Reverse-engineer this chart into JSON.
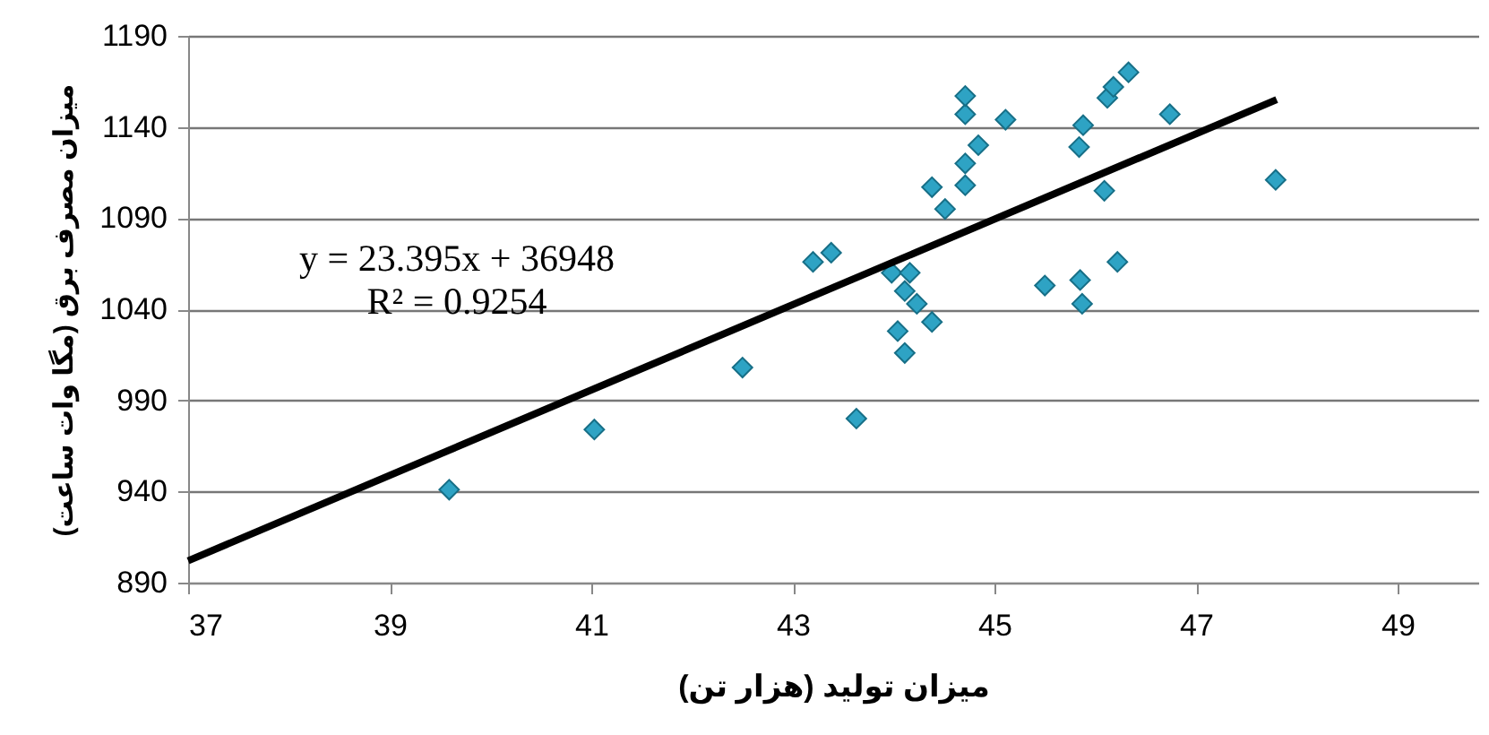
{
  "chart_data": {
    "type": "scatter",
    "xlabel": "میزان تولید (هزار تن)",
    "ylabel": "میزان مصرف برق (مگا وات ساعت)",
    "annotations": [
      "y = 23.395x + 36948",
      "R² = 0.9254"
    ],
    "xlim": [
      37,
      49.8
    ],
    "xticks": [
      37,
      39,
      41,
      43,
      45,
      47,
      49
    ],
    "ylim": [
      890,
      1190
    ],
    "yticks": [
      890,
      940,
      990,
      1040,
      1090,
      1140,
      1190
    ],
    "grid": "y",
    "series": [
      {
        "marker": "diamond",
        "color": "#2ea3c4",
        "x": [
          39.59,
          41.03,
          42.5,
          43.2,
          43.38,
          43.63,
          43.98,
          44.16,
          44.11,
          44.23,
          44.04,
          44.11,
          44.38,
          44.38,
          44.51,
          44.71,
          44.71,
          44.84,
          44.71,
          44.71,
          45.11,
          45.5,
          45.85,
          45.87,
          45.84,
          45.88,
          46.09,
          46.22,
          46.12,
          46.18,
          46.33,
          46.74,
          47.79
        ],
        "values": [
          941,
          974,
          1008,
          1066,
          1071,
          980,
          1060,
          1060,
          1050,
          1043,
          1028,
          1016,
          1033,
          1107,
          1095,
          1108,
          1120,
          1130,
          1147,
          1157,
          1144,
          1053,
          1056,
          1043,
          1129,
          1141,
          1105,
          1066,
          1156,
          1162,
          1170,
          1147,
          1111
        ]
      },
      {
        "type": "line",
        "color": "#000000",
        "line_style": "solid",
        "x": [
          37,
          47.8
        ],
        "values": [
          902,
          1155
        ]
      }
    ]
  }
}
